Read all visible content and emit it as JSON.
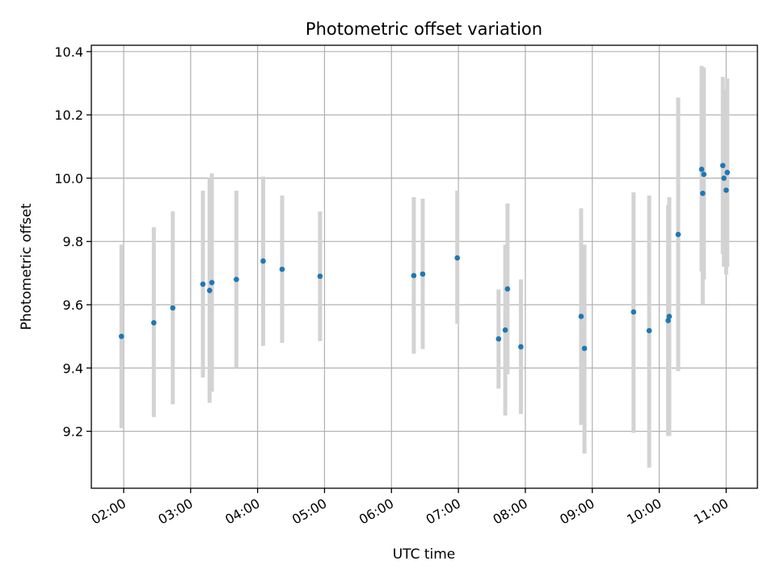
{
  "chart_data": {
    "type": "scatter",
    "title": "Photometric offset variation",
    "xlabel": "UTC time",
    "ylabel": "Photometric offset",
    "x_ticks": [
      "02:00",
      "03:00",
      "04:00",
      "05:00",
      "06:00",
      "07:00",
      "08:00",
      "09:00",
      "10:00",
      "11:00"
    ],
    "xlim": [
      "01:31",
      "11:28"
    ],
    "y_ticks": [
      "9.2",
      "9.4",
      "9.6",
      "9.8",
      "10.0",
      "10.2",
      "10.4"
    ],
    "ylim": [
      9.02,
      10.42
    ],
    "grid": true,
    "point_color": "#1f77b4",
    "errorbar_color": "#d3d3d3",
    "points": [
      {
        "x": "01:58",
        "y": 9.5,
        "yerr_low": 9.21,
        "yerr_high": 9.79
      },
      {
        "x": "02:27",
        "y": 9.543,
        "yerr_low": 9.245,
        "yerr_high": 9.845
      },
      {
        "x": "02:44",
        "y": 9.59,
        "yerr_low": 9.285,
        "yerr_high": 9.895
      },
      {
        "x": "03:11",
        "y": 9.665,
        "yerr_low": 9.37,
        "yerr_high": 9.96
      },
      {
        "x": "03:17",
        "y": 9.645,
        "yerr_low": 9.29,
        "yerr_high": 10.0
      },
      {
        "x": "03:19",
        "y": 9.67,
        "yerr_low": 9.325,
        "yerr_high": 10.015
      },
      {
        "x": "03:41",
        "y": 9.68,
        "yerr_low": 9.4,
        "yerr_high": 9.96
      },
      {
        "x": "04:05",
        "y": 9.738,
        "yerr_low": 9.47,
        "yerr_high": 10.005
      },
      {
        "x": "04:22",
        "y": 9.712,
        "yerr_low": 9.48,
        "yerr_high": 9.945
      },
      {
        "x": "04:56",
        "y": 9.69,
        "yerr_low": 9.485,
        "yerr_high": 9.895
      },
      {
        "x": "06:20",
        "y": 9.692,
        "yerr_low": 9.445,
        "yerr_high": 9.94
      },
      {
        "x": "06:28",
        "y": 9.697,
        "yerr_low": 9.46,
        "yerr_high": 9.935
      },
      {
        "x": "06:59",
        "y": 9.748,
        "yerr_low": 9.54,
        "yerr_high": 9.96
      },
      {
        "x": "07:36",
        "y": 9.492,
        "yerr_low": 9.335,
        "yerr_high": 9.648
      },
      {
        "x": "07:42",
        "y": 9.52,
        "yerr_low": 9.25,
        "yerr_high": 9.79
      },
      {
        "x": "07:44",
        "y": 9.65,
        "yerr_low": 9.38,
        "yerr_high": 9.92
      },
      {
        "x": "07:56",
        "y": 9.467,
        "yerr_low": 9.255,
        "yerr_high": 9.68
      },
      {
        "x": "08:50",
        "y": 9.563,
        "yerr_low": 9.22,
        "yerr_high": 9.905
      },
      {
        "x": "08:53",
        "y": 9.462,
        "yerr_low": 9.13,
        "yerr_high": 9.79
      },
      {
        "x": "09:37",
        "y": 9.577,
        "yerr_low": 9.195,
        "yerr_high": 9.955
      },
      {
        "x": "09:51",
        "y": 9.518,
        "yerr_low": 9.085,
        "yerr_high": 9.945
      },
      {
        "x": "10:08",
        "y": 9.55,
        "yerr_low": 9.185,
        "yerr_high": 9.915
      },
      {
        "x": "10:09",
        "y": 9.563,
        "yerr_low": 9.185,
        "yerr_high": 9.94
      },
      {
        "x": "10:17",
        "y": 9.822,
        "yerr_low": 9.39,
        "yerr_high": 10.255
      },
      {
        "x": "10:38",
        "y": 10.028,
        "yerr_low": 9.705,
        "yerr_high": 10.355
      },
      {
        "x": "10:39",
        "y": 9.952,
        "yerr_low": 9.6,
        "yerr_high": 10.3
      },
      {
        "x": "10:40",
        "y": 10.012,
        "yerr_low": 9.68,
        "yerr_high": 10.35
      },
      {
        "x": "10:57",
        "y": 10.04,
        "yerr_low": 9.76,
        "yerr_high": 10.32
      },
      {
        "x": "10:58",
        "y": 10.0,
        "yerr_low": 9.72,
        "yerr_high": 10.28
      },
      {
        "x": "11:00",
        "y": 9.962,
        "yerr_low": 9.695,
        "yerr_high": 10.23
      },
      {
        "x": "11:01",
        "y": 10.018,
        "yerr_low": 9.72,
        "yerr_high": 10.315
      }
    ]
  }
}
